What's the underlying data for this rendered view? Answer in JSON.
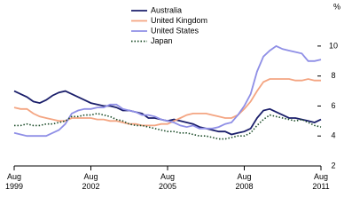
{
  "chart_data": {
    "type": "line",
    "y_label": "%",
    "legend": "top-center",
    "x": [
      1999.58,
      1999.83,
      2000.08,
      2000.33,
      2000.58,
      2000.83,
      2001.08,
      2001.33,
      2001.58,
      2001.83,
      2002.08,
      2002.33,
      2002.58,
      2002.83,
      2003.08,
      2003.33,
      2003.58,
      2003.83,
      2004.08,
      2004.33,
      2004.58,
      2004.83,
      2005.08,
      2005.33,
      2005.58,
      2005.83,
      2006.08,
      2006.33,
      2006.58,
      2006.83,
      2007.08,
      2007.33,
      2007.58,
      2007.83,
      2008.08,
      2008.33,
      2008.58,
      2008.83,
      2009.08,
      2009.33,
      2009.58,
      2009.83,
      2010.08,
      2010.33,
      2010.58,
      2010.83,
      2011.08,
      2011.33,
      2011.58
    ],
    "series": [
      {
        "name": "Australia",
        "color": "#1b1f6b",
        "dash": "solid",
        "values": [
          7.0,
          6.8,
          6.6,
          6.3,
          6.2,
          6.4,
          6.7,
          6.9,
          7.0,
          6.8,
          6.6,
          6.4,
          6.2,
          6.1,
          6.0,
          6.0,
          5.9,
          5.7,
          5.7,
          5.6,
          5.5,
          5.2,
          5.2,
          5.1,
          5.0,
          5.1,
          5.0,
          4.9,
          4.8,
          4.6,
          4.5,
          4.4,
          4.3,
          4.3,
          4.1,
          4.2,
          4.3,
          4.5,
          5.2,
          5.7,
          5.8,
          5.6,
          5.4,
          5.2,
          5.2,
          5.1,
          5.0,
          4.9,
          5.1
        ]
      },
      {
        "name": "United Kingdom",
        "color": "#f4a582",
        "dash": "solid",
        "values": [
          5.9,
          5.8,
          5.8,
          5.5,
          5.3,
          5.2,
          5.1,
          5.0,
          5.0,
          5.2,
          5.2,
          5.2,
          5.2,
          5.1,
          5.1,
          5.0,
          5.0,
          4.9,
          4.8,
          4.8,
          4.7,
          4.7,
          4.7,
          4.8,
          4.8,
          5.0,
          5.2,
          5.4,
          5.5,
          5.5,
          5.5,
          5.4,
          5.3,
          5.2,
          5.2,
          5.4,
          5.8,
          6.3,
          7.0,
          7.6,
          7.8,
          7.8,
          7.8,
          7.8,
          7.7,
          7.7,
          7.8,
          7.7,
          7.7
        ]
      },
      {
        "name": "United States",
        "color": "#8f8fe6",
        "dash": "solid",
        "values": [
          4.2,
          4.1,
          4.0,
          4.0,
          4.0,
          4.0,
          4.2,
          4.4,
          4.8,
          5.5,
          5.7,
          5.8,
          5.8,
          5.9,
          5.9,
          6.1,
          6.1,
          5.8,
          5.7,
          5.6,
          5.4,
          5.4,
          5.3,
          5.1,
          5.0,
          4.9,
          4.7,
          4.6,
          4.7,
          4.5,
          4.5,
          4.5,
          4.6,
          4.8,
          4.9,
          5.4,
          6.0,
          6.8,
          8.3,
          9.3,
          9.7,
          10.0,
          9.8,
          9.7,
          9.6,
          9.5,
          9.0,
          9.0,
          9.1
        ]
      },
      {
        "name": "Japan",
        "color": "#1d4d2a",
        "dash": "dotted",
        "values": [
          4.7,
          4.7,
          4.8,
          4.7,
          4.7,
          4.8,
          4.8,
          4.9,
          5.0,
          5.3,
          5.3,
          5.4,
          5.4,
          5.5,
          5.4,
          5.3,
          5.1,
          5.0,
          4.8,
          4.7,
          4.7,
          4.6,
          4.5,
          4.4,
          4.3,
          4.3,
          4.2,
          4.2,
          4.1,
          4.0,
          4.0,
          3.9,
          3.8,
          3.8,
          3.9,
          4.0,
          4.0,
          4.2,
          4.7,
          5.1,
          5.4,
          5.3,
          5.2,
          5.1,
          5.0,
          5.1,
          4.9,
          4.7,
          4.6
        ]
      }
    ],
    "xlim": [
      1999.58,
      2011.58
    ],
    "xticks": [
      {
        "value": 1999.58,
        "label": "Aug 1999"
      },
      {
        "value": 2002.58,
        "label": "Aug 2002"
      },
      {
        "value": 2005.58,
        "label": "Aug 2005"
      },
      {
        "value": 2008.58,
        "label": "Aug 2008"
      },
      {
        "value": 2011.58,
        "label": "Aug 2011"
      }
    ],
    "ylim": [
      2,
      11
    ],
    "yticks": [
      2,
      4,
      6,
      8,
      10
    ],
    "grid": false
  }
}
